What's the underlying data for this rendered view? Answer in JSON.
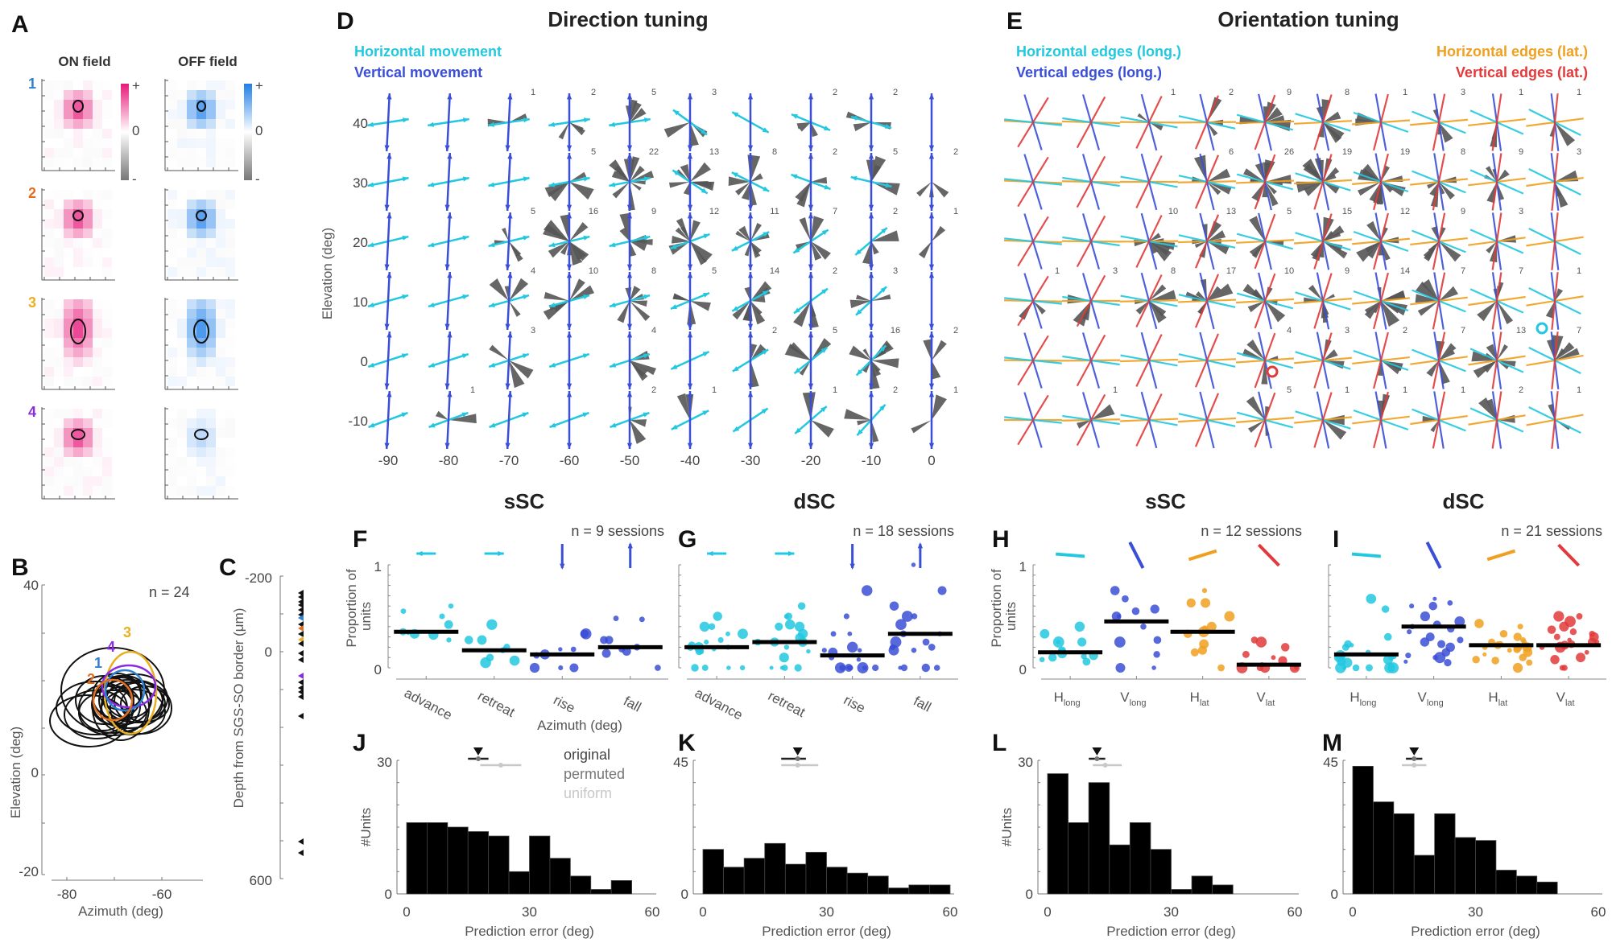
{
  "colors": {
    "cyan": "#22c8e0",
    "blue": "#3b4fd6",
    "orange": "#f0a020",
    "red": "#e23a3a",
    "purple": "#8a2be2",
    "unit1": "#2f7fd0",
    "unit2": "#e07020",
    "unit3": "#e8b020",
    "unit4": "#8a2be2",
    "pink": "#e8197a",
    "offblue": "#1e7fe8",
    "wedge": "#555555",
    "hist": "#000000",
    "original": "#222222",
    "permuted": "#777777",
    "uniform": "#c8c8c8"
  },
  "panels": {
    "A": {
      "letter": "A",
      "col_titles": [
        "ON field",
        "OFF field"
      ],
      "row_labels": [
        "1",
        "2",
        "3",
        "4"
      ],
      "colorbar_plus": "+",
      "colorbar_zero": "0",
      "colorbar_minus": "-"
    },
    "B": {
      "letter": "B",
      "annotation": "n = 24",
      "xlabel": "Azimuth (deg)",
      "ylabel": "Elevation (deg)",
      "xticks": [
        "-80",
        "-60"
      ],
      "yticks": [
        "40",
        "0",
        "-20"
      ],
      "unit_labels": [
        "1",
        "2",
        "3",
        "4"
      ]
    },
    "C": {
      "letter": "C",
      "ylabel": "Depth from SGS-SO border (μm)",
      "yticks": [
        "-200",
        "0",
        "600"
      ]
    },
    "D": {
      "letter": "D",
      "title": "Direction tuning",
      "legend": [
        "Horizontal movement",
        "Vertical movement"
      ],
      "xlabel": "Azimuth (deg)",
      "ylabel": "Elevation (deg)"
    },
    "E": {
      "letter": "E",
      "title": "Orientation tuning",
      "legend_left": [
        "Horizontal edges (long.)",
        "Vertical edges (long.)"
      ],
      "legend_right": [
        "Horizontal edges (lat.)",
        "Vertical edges (lat.)"
      ]
    },
    "F": {
      "letter": "F",
      "title": "sSC",
      "annotation": "n = 9 sessions",
      "ylabel": [
        "Proportion of",
        "units"
      ],
      "yticks": [
        "1",
        "0"
      ],
      "categories": [
        "advance",
        "retreat",
        "rise",
        "fall"
      ]
    },
    "G": {
      "letter": "G",
      "title": "dSC",
      "annotation": "n = 18 sessions",
      "categories": [
        "advance",
        "retreat",
        "rise",
        "fall"
      ]
    },
    "H": {
      "letter": "H",
      "title": "sSC",
      "annotation": "n = 12 sessions",
      "ylabel": [
        "Proportion of",
        "units"
      ],
      "yticks": [
        "1",
        "0"
      ],
      "categories": [
        "H",
        "V",
        "H",
        "V"
      ],
      "subscripts": [
        "long",
        "long",
        "lat",
        "lat"
      ]
    },
    "I": {
      "letter": "I",
      "title": "dSC",
      "annotation": "n = 21 sessions",
      "categories": [
        "H",
        "V",
        "H",
        "V"
      ],
      "subscripts": [
        "long",
        "long",
        "lat",
        "lat"
      ]
    },
    "J": {
      "letter": "J",
      "ylabel": "#Units",
      "xlabel": "Prediction error (deg)",
      "legend": [
        "original",
        "permuted",
        "uniform"
      ]
    },
    "K": {
      "letter": "K",
      "xlabel": "Prediction error (deg)"
    },
    "L": {
      "letter": "L",
      "ylabel": "#Units",
      "xlabel": "Prediction error (deg)"
    },
    "M": {
      "letter": "M",
      "xlabel": "Prediction error (deg)"
    }
  },
  "chart_data": [
    {
      "id": "D",
      "type": "scatter",
      "title": "Direction tuning",
      "xlabel": "Azimuth (deg)",
      "ylabel": "Elevation (deg)",
      "x_ticks": [
        -90,
        -80,
        -70,
        -60,
        -50,
        -40,
        -30,
        -20,
        -10,
        0
      ],
      "y_ticks": [
        40,
        30,
        20,
        10,
        0,
        -10
      ],
      "cell_counts": [
        [
          null,
          null,
          1,
          2,
          5,
          3,
          null,
          2,
          2,
          null
        ],
        [
          null,
          null,
          null,
          5,
          22,
          13,
          8,
          2,
          5,
          2
        ],
        [
          null,
          null,
          5,
          16,
          9,
          12,
          11,
          7,
          2,
          1
        ],
        [
          null,
          null,
          4,
          10,
          8,
          5,
          14,
          2,
          3,
          null
        ],
        [
          null,
          null,
          3,
          null,
          4,
          null,
          2,
          5,
          16,
          2
        ],
        [
          null,
          1,
          null,
          null,
          2,
          1,
          null,
          1,
          2,
          1
        ]
      ]
    },
    {
      "id": "E",
      "type": "scatter",
      "title": "Orientation tuning",
      "cell_counts": [
        [
          null,
          null,
          1,
          2,
          9,
          8,
          1,
          3,
          1,
          1
        ],
        [
          null,
          null,
          null,
          6,
          26,
          19,
          19,
          8,
          9,
          3
        ],
        [
          null,
          null,
          10,
          13,
          5,
          15,
          12,
          9,
          3,
          null
        ],
        [
          1,
          3,
          8,
          17,
          10,
          9,
          14,
          7,
          7,
          1
        ],
        [
          null,
          null,
          null,
          null,
          4,
          3,
          2,
          7,
          13,
          7
        ],
        [
          null,
          1,
          null,
          null,
          5,
          1,
          1,
          1,
          2,
          1
        ]
      ]
    },
    {
      "id": "F",
      "type": "scatter",
      "title": "sSC",
      "ylabel": "Proportion of units",
      "ylim": [
        0,
        1
      ],
      "categories": [
        "advance",
        "retreat",
        "rise",
        "fall"
      ],
      "medians": [
        0.35,
        0.17,
        0.13,
        0.2
      ],
      "points": [
        [
          0.6,
          0.55,
          0.5,
          0.42,
          0.35,
          0.34,
          0.33,
          0.32,
          0.27
        ],
        [
          0.42,
          0.27,
          0.27,
          0.2,
          0.18,
          0.17,
          0.1,
          0.07,
          0.05
        ],
        [
          0.33,
          0.33,
          0.18,
          0.18,
          0.13,
          0.12,
          0.0,
          0.0,
          0.0
        ],
        [
          0.48,
          0.47,
          0.27,
          0.27,
          0.2,
          0.18,
          0.16,
          0.14,
          0.0
        ]
      ]
    },
    {
      "id": "G",
      "type": "scatter",
      "title": "dSC",
      "ylim": [
        0,
        1
      ],
      "categories": [
        "advance",
        "retreat",
        "rise",
        "fall"
      ],
      "medians": [
        0.2,
        0.25,
        0.12,
        0.33
      ],
      "points": [
        [
          0.5,
          0.4,
          0.4,
          0.33,
          0.33,
          0.27,
          0.25,
          0.22,
          0.2,
          0.2,
          0.2,
          0.18,
          0.16,
          0.16,
          0.0,
          0.0,
          0.0,
          0.0
        ],
        [
          0.6,
          0.5,
          0.5,
          0.42,
          0.4,
          0.4,
          0.33,
          0.29,
          0.25,
          0.25,
          0.25,
          0.2,
          0.16,
          0.1,
          0.0,
          0.0,
          0.0,
          0.0
        ],
        [
          0.75,
          0.5,
          0.33,
          0.33,
          0.2,
          0.17,
          0.17,
          0.15,
          0.1,
          0.08,
          0.0,
          0.0,
          0.0,
          0.0,
          0.0,
          0.0,
          0.0,
          0.0
        ],
        [
          1.0,
          0.75,
          0.6,
          0.5,
          0.5,
          0.42,
          0.33,
          0.33,
          0.25,
          0.25,
          0.2,
          0.2,
          0.17,
          0.17,
          0.0,
          0.0,
          0.0,
          0.0
        ]
      ]
    },
    {
      "id": "H",
      "type": "scatter",
      "title": "sSC",
      "ylabel": "Proportion of units",
      "ylim": [
        0,
        1
      ],
      "categories": [
        "Hlong",
        "Vlong",
        "Hlat",
        "Vlat"
      ],
      "medians": [
        0.15,
        0.45,
        0.35,
        0.03
      ],
      "points": [
        [
          0.4,
          0.33,
          0.25,
          0.25,
          0.25,
          0.17,
          0.14,
          0.12,
          0.11,
          0.1,
          0.08,
          0.06
        ],
        [
          0.75,
          0.67,
          0.57,
          0.55,
          0.5,
          0.5,
          0.4,
          0.27,
          0.25,
          0.13,
          0.0,
          0.0
        ],
        [
          0.75,
          0.63,
          0.63,
          0.5,
          0.4,
          0.38,
          0.35,
          0.33,
          0.23,
          0.17,
          0.15,
          0.0
        ],
        [
          0.27,
          0.25,
          0.2,
          0.13,
          0.1,
          0.07,
          0.03,
          0.0,
          0.0,
          0.0,
          0.0,
          0.0
        ]
      ]
    },
    {
      "id": "I",
      "type": "scatter",
      "title": "dSC",
      "ylim": [
        0,
        1
      ],
      "categories": [
        "Hlong",
        "Vlong",
        "Hlat",
        "Vlat"
      ],
      "medians": [
        0.13,
        0.4,
        0.22,
        0.22
      ],
      "points": [
        [
          0.67,
          0.57,
          0.3,
          0.23,
          0.22,
          0.2,
          0.15,
          0.13,
          0.12,
          0.11,
          0.1,
          0.1,
          0.08,
          0.06,
          0.05,
          0.0,
          0.0,
          0.0,
          0.0,
          0.0,
          0.0
        ],
        [
          0.67,
          0.63,
          0.6,
          0.6,
          0.5,
          0.45,
          0.42,
          0.4,
          0.38,
          0.35,
          0.3,
          0.27,
          0.25,
          0.23,
          0.2,
          0.15,
          0.12,
          0.1,
          0.1,
          0.06,
          0.05
        ],
        [
          0.43,
          0.4,
          0.33,
          0.3,
          0.27,
          0.25,
          0.25,
          0.23,
          0.22,
          0.2,
          0.2,
          0.2,
          0.18,
          0.17,
          0.15,
          0.13,
          0.1,
          0.08,
          0.07,
          0.05,
          0.0
        ],
        [
          0.5,
          0.5,
          0.45,
          0.4,
          0.37,
          0.35,
          0.33,
          0.3,
          0.3,
          0.27,
          0.25,
          0.25,
          0.23,
          0.22,
          0.2,
          0.2,
          0.15,
          0.1,
          0.08,
          0.0,
          0.0
        ]
      ]
    },
    {
      "id": "J",
      "type": "bar",
      "ylabel": "#Units",
      "xlabel": "Prediction error (deg)",
      "xlim": [
        0,
        60
      ],
      "ylim": [
        0,
        30
      ],
      "xticks": [
        0,
        30,
        60
      ],
      "yticks": [
        0,
        30
      ],
      "bin_width": 5,
      "values": [
        16,
        16,
        15,
        14,
        13,
        5,
        13,
        8,
        4,
        1,
        3,
        0
      ],
      "markers": {
        "original": {
          "mean": 17.5,
          "lo": 15,
          "hi": 20
        },
        "permuted": {
          "mean": 23,
          "lo": 18,
          "hi": 28
        }
      }
    },
    {
      "id": "K",
      "type": "bar",
      "xlabel": "Prediction error (deg)",
      "xlim": [
        0,
        60
      ],
      "ylim": [
        0,
        45
      ],
      "xticks": [
        0,
        30,
        60
      ],
      "yticks": [
        0,
        45
      ],
      "bin_width": 5,
      "values": [
        15,
        9,
        12,
        17,
        10,
        14,
        9,
        7,
        6,
        2,
        3,
        3
      ],
      "markers": {
        "original": {
          "mean": 23,
          "lo": 19,
          "hi": 25
        },
        "permuted": {
          "mean": 23,
          "lo": 19,
          "hi": 28
        }
      }
    },
    {
      "id": "L",
      "type": "bar",
      "ylabel": "#Units",
      "xlabel": "Prediction error (deg)",
      "xlim": [
        0,
        60
      ],
      "ylim": [
        0,
        30
      ],
      "xticks": [
        0,
        30,
        60
      ],
      "yticks": [
        0,
        30
      ],
      "bin_width": 5,
      "values": [
        27,
        16,
        25,
        11,
        16,
        10,
        1,
        4,
        2,
        0,
        0,
        0
      ],
      "markers": {
        "original": {
          "mean": 12,
          "lo": 10,
          "hi": 14
        },
        "permuted": {
          "mean": 14,
          "lo": 11,
          "hi": 18
        }
      }
    },
    {
      "id": "M",
      "type": "bar",
      "xlabel": "Prediction error (deg)",
      "xlim": [
        0,
        60
      ],
      "ylim": [
        0,
        45
      ],
      "xticks": [
        0,
        30,
        60
      ],
      "yticks": [
        0,
        45
      ],
      "bin_width": 5,
      "values": [
        43,
        31,
        27,
        13,
        27,
        19,
        18,
        8,
        6,
        4,
        0,
        0
      ],
      "markers": {
        "original": {
          "mean": 15,
          "lo": 13,
          "hi": 17
        },
        "permuted": {
          "mean": 15,
          "lo": 12,
          "hi": 18
        }
      }
    }
  ]
}
